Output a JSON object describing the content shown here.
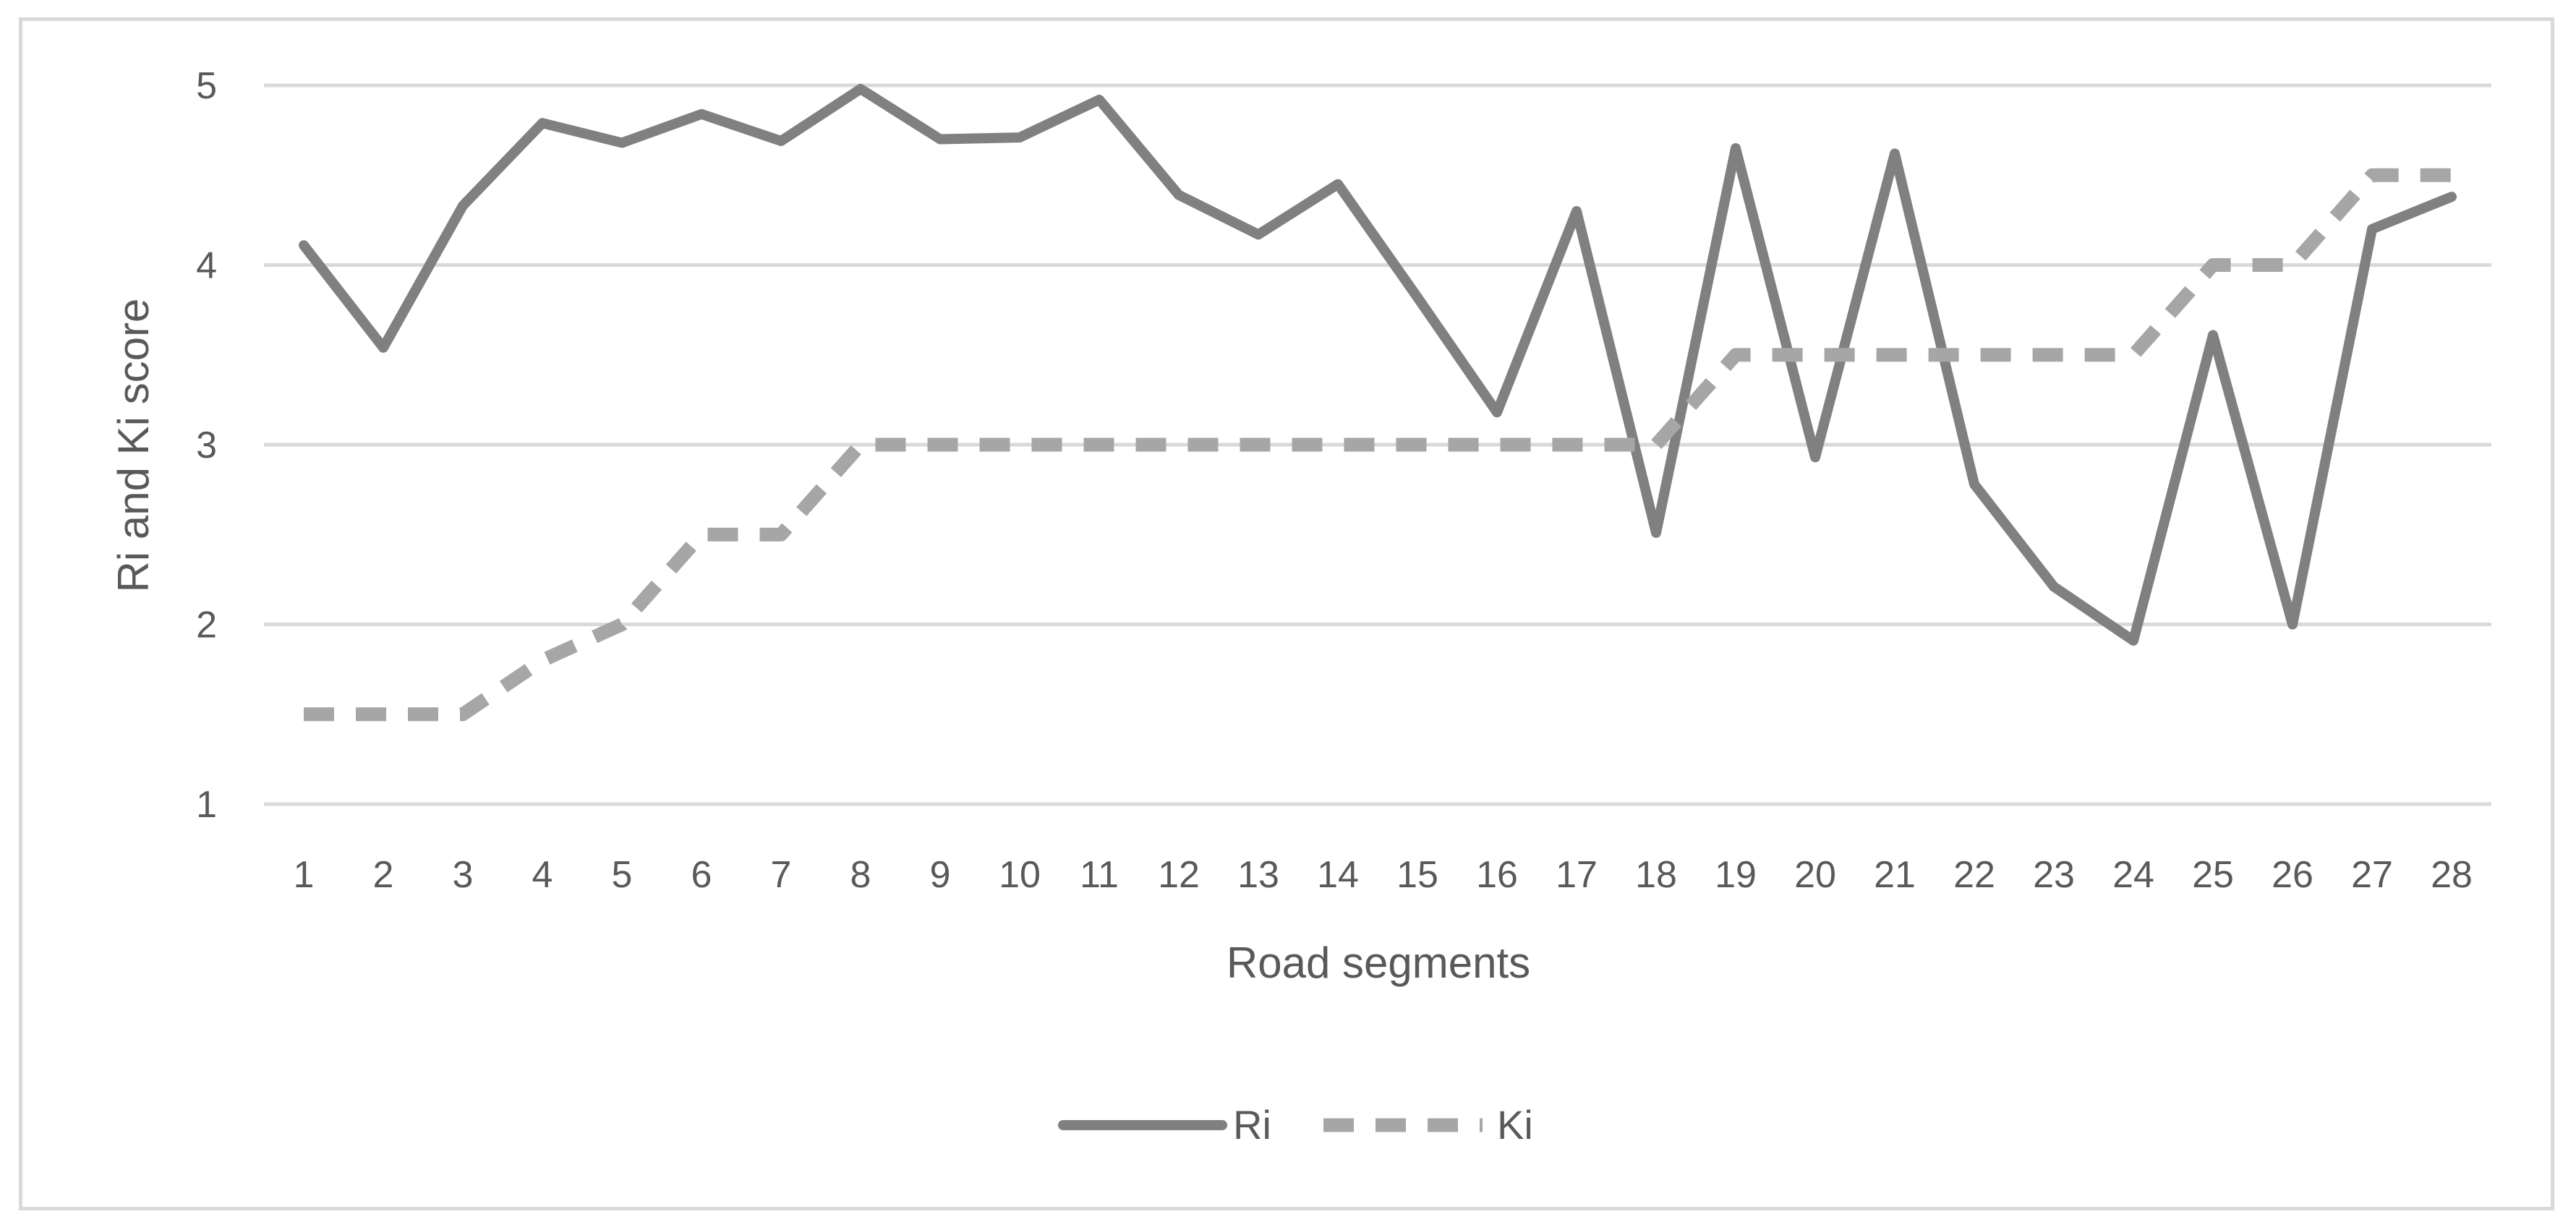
{
  "chart_data": {
    "type": "line",
    "title": "",
    "xlabel": "Road segments",
    "ylabel": "Ri and Ki score",
    "categories": [
      "1",
      "2",
      "3",
      "4",
      "5",
      "6",
      "7",
      "8",
      "9",
      "10",
      "11",
      "12",
      "13",
      "14",
      "15",
      "16",
      "17",
      "18",
      "19",
      "20",
      "21",
      "22",
      "23",
      "24",
      "25",
      "26",
      "27",
      "28"
    ],
    "ylim": [
      1,
      5
    ],
    "yticks": [
      "1",
      "2",
      "3",
      "4",
      "5"
    ],
    "grid": true,
    "legend_position": "bottom",
    "series": [
      {
        "name": "Ri",
        "style": "solid",
        "color": "#808080",
        "values": [
          4.11,
          3.54,
          4.33,
          4.79,
          4.68,
          4.84,
          4.69,
          4.98,
          4.7,
          4.71,
          4.92,
          4.39,
          4.17,
          4.45,
          3.82,
          3.18,
          4.3,
          2.51,
          4.65,
          2.93,
          4.62,
          2.78,
          2.21,
          1.91,
          3.61,
          2.0,
          4.2,
          4.38
        ]
      },
      {
        "name": "Ki",
        "style": "dashed",
        "color": "#a6a6a6",
        "values": [
          1.5,
          1.5,
          1.5,
          1.8,
          2.0,
          2.5,
          2.5,
          3.0,
          3.0,
          3.0,
          3.0,
          3.0,
          3.0,
          3.0,
          3.0,
          3.0,
          3.0,
          3.0,
          3.5,
          3.5,
          3.5,
          3.5,
          3.5,
          3.5,
          4.0,
          4.0,
          4.5,
          4.5
        ]
      }
    ]
  }
}
